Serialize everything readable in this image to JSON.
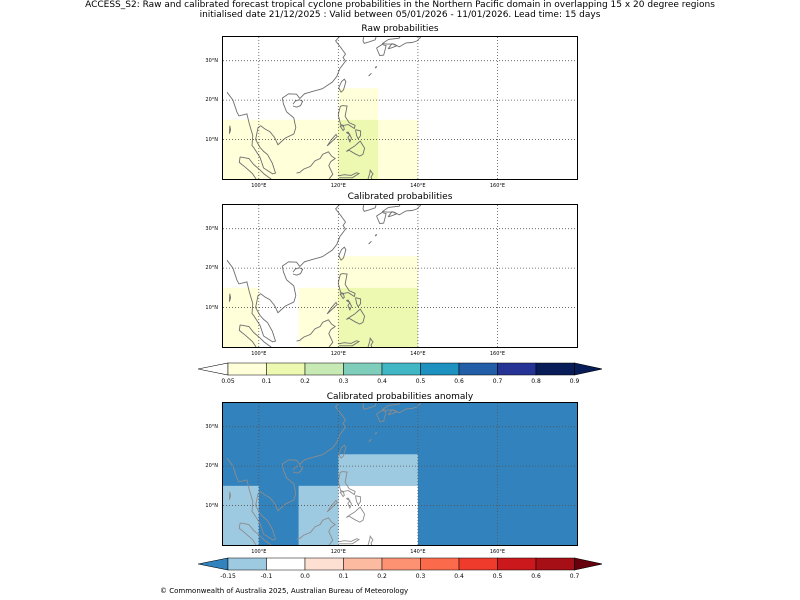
{
  "header": {
    "title_line1": "ACCESS_S2: Raw and calibrated forecast tropical cyclone probabilities in the Northern Pacific domain in overlapping 15 x 20 degree regions",
    "title_line2": "initialised date 21/12/2025 :  Valid between 05/01/2026 - 11/01/2026. Lead time: 15 days"
  },
  "panels": {
    "raw": {
      "title": "Raw probabilities"
    },
    "calibrated": {
      "title": "Calibrated probabilities"
    },
    "anomaly": {
      "title": "Calibrated probabilities anomaly"
    }
  },
  "axes": {
    "lat_labels": [
      "30°N",
      "20°N",
      "10°N"
    ],
    "lon_labels": [
      "100°E",
      "120°E",
      "140°E",
      "160°E"
    ]
  },
  "map_extent": {
    "lon_min": 91,
    "lon_max": 180,
    "lat_min": 0,
    "lat_max": 36
  },
  "probability_colorbar": {
    "labels": [
      "0.05",
      "0.1",
      "0.2",
      "0.3",
      "0.4",
      "0.5",
      "0.6",
      "0.7",
      "0.8",
      "0.9"
    ],
    "colors": [
      "#ffffd9",
      "#edf8b1",
      "#c7e9b4",
      "#7fcdbb",
      "#41b6c4",
      "#1d91c0",
      "#225ea8",
      "#253494",
      "#081d58"
    ],
    "under_color": "#ffffff",
    "over_color": "#081d58"
  },
  "anomaly_colorbar": {
    "labels": [
      "-0.15",
      "-0.1",
      "0.0",
      "0.1",
      "0.2",
      "0.3",
      "0.4",
      "0.5",
      "0.6",
      "0.7"
    ],
    "colors": [
      "#9ecae1",
      "#ffffff",
      "#fee0d2",
      "#fcbba1",
      "#fc9272",
      "#fb6a4a",
      "#ef3b2c",
      "#cb181d",
      "#a50f15"
    ],
    "under_color": "#3182bd",
    "over_color": "#67000d"
  },
  "regions": {
    "raw": [
      {
        "lon": [
          91,
          140
        ],
        "lat": [
          0,
          15
        ],
        "color": "#ffffd9"
      },
      {
        "lon": [
          120,
          130
        ],
        "lat": [
          15,
          23
        ],
        "color": "#ffffd9"
      },
      {
        "lon": [
          120,
          130
        ],
        "lat": [
          0,
          15
        ],
        "color": "#edf8b1"
      }
    ],
    "calibrated": [
      {
        "lon": [
          91,
          100
        ],
        "lat": [
          0,
          15
        ],
        "color": "#ffffd9"
      },
      {
        "lon": [
          110,
          140
        ],
        "lat": [
          0,
          15
        ],
        "color": "#ffffd9"
      },
      {
        "lon": [
          120,
          140
        ],
        "lat": [
          15,
          23
        ],
        "color": "#ffffd9"
      },
      {
        "lon": [
          120,
          140
        ],
        "lat": [
          0,
          15
        ],
        "color": "#edf8b1"
      }
    ],
    "anomaly": [
      {
        "lon": [
          91,
          180
        ],
        "lat": [
          0,
          36
        ],
        "color": "#3182bd"
      },
      {
        "lon": [
          120,
          140
        ],
        "lat": [
          15,
          23
        ],
        "color": "#9ecae1"
      },
      {
        "lon": [
          120,
          140
        ],
        "lat": [
          0,
          15
        ],
        "color": "#ffffff"
      },
      {
        "lon": [
          91,
          100
        ],
        "lat": [
          0,
          15
        ],
        "color": "#9ecae1"
      },
      {
        "lon": [
          110,
          120
        ],
        "lat": [
          0,
          15
        ],
        "color": "#9ecae1"
      }
    ]
  },
  "footer": {
    "text": "© Commonwealth of Australia 2025, Australian Bureau of Meteorology"
  }
}
